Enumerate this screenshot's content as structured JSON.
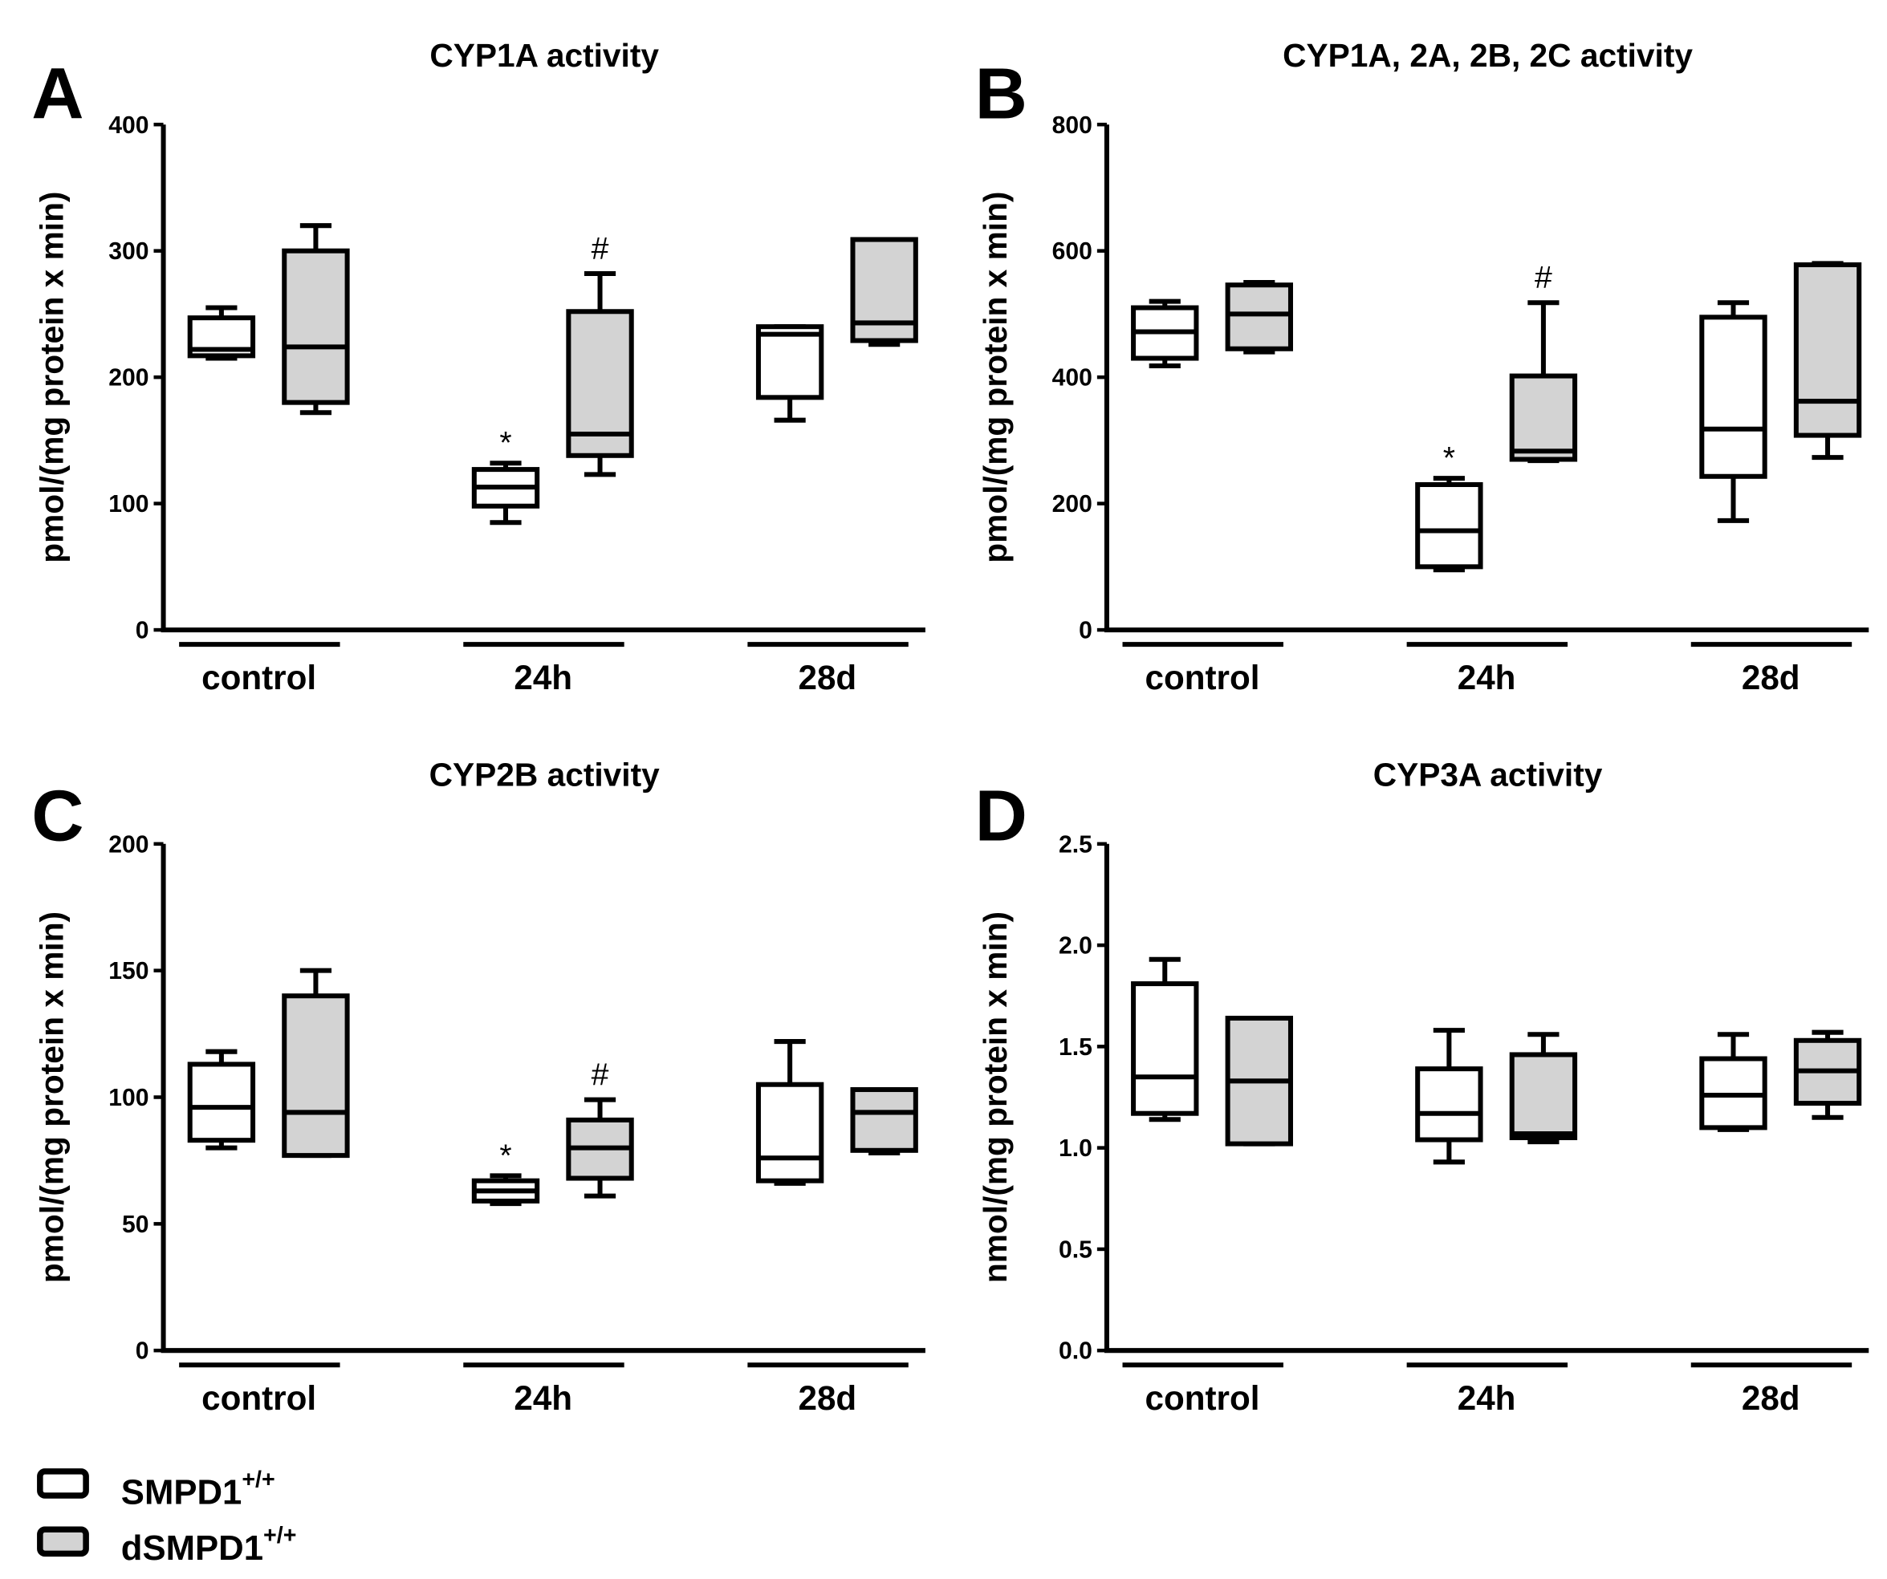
{
  "legend": {
    "items": [
      {
        "label": "SMPD1",
        "sup": "+/+",
        "color": "#ffffff"
      },
      {
        "label": "dSMPD1",
        "sup": "+/+",
        "color": "#d3d3d3"
      }
    ]
  },
  "chart_data": [
    {
      "type": "box",
      "panel": "A",
      "title": "CYP1A activity",
      "ylabel": "pmol/(mg protein x min)",
      "ylim": [
        0,
        400
      ],
      "yticks": [
        0,
        100,
        200,
        300,
        400
      ],
      "categories": [
        "control",
        "24h",
        "28d"
      ],
      "series": [
        {
          "name": "SMPD1+/+",
          "boxes": [
            [
              215,
              217,
              222,
              247,
              255
            ],
            [
              85,
              98,
              113,
              127,
              132
            ],
            [
              166,
              184,
              234,
              240,
              240
            ]
          ]
        },
        {
          "name": "dSMPD1+/+",
          "boxes": [
            [
              172,
              180,
              224,
              300,
              320
            ],
            [
              123,
              138,
              155,
              252,
              282
            ],
            [
              226,
              229,
              243,
              309,
              309
            ]
          ]
        }
      ],
      "annotations": [
        {
          "category": 1,
          "series": 0,
          "text": "*"
        },
        {
          "category": 1,
          "series": 1,
          "text": "#"
        }
      ]
    },
    {
      "type": "box",
      "panel": "B",
      "title": "CYP1A, 2A, 2B, 2C activity",
      "ylabel": "pmol/(mg protein x min)",
      "ylim": [
        0,
        800
      ],
      "yticks": [
        0,
        200,
        400,
        600,
        800
      ],
      "categories": [
        "control",
        "24h",
        "28d"
      ],
      "series": [
        {
          "name": "SMPD1+/+",
          "boxes": [
            [
              418,
              430,
              472,
              510,
              520
            ],
            [
              95,
              100,
              157,
              230,
              240
            ],
            [
              173,
              243,
              318,
              495,
              518
            ]
          ]
        },
        {
          "name": "dSMPD1+/+",
          "boxes": [
            [
              440,
              445,
              500,
              546,
              550
            ],
            [
              268,
              270,
              283,
              402,
              518
            ],
            [
              273,
              308,
              362,
              578,
              580
            ]
          ]
        }
      ],
      "annotations": [
        {
          "category": 1,
          "series": 0,
          "text": "*"
        },
        {
          "category": 1,
          "series": 1,
          "text": "#"
        }
      ]
    },
    {
      "type": "box",
      "panel": "C",
      "title": "CYP2B activity",
      "ylabel": "pmol/(mg protein x min)",
      "ylim": [
        0,
        200
      ],
      "yticks": [
        0,
        50,
        100,
        150,
        200
      ],
      "categories": [
        "control",
        "24h",
        "28d"
      ],
      "series": [
        {
          "name": "SMPD1+/+",
          "boxes": [
            [
              80,
              83,
              96,
              113,
              118
            ],
            [
              58,
              59,
              63,
              67,
              69
            ],
            [
              66,
              67,
              76,
              105,
              122
            ]
          ]
        },
        {
          "name": "dSMPD1+/+",
          "boxes": [
            [
              77,
              77,
              94,
              140,
              150
            ],
            [
              61,
              68,
              80,
              91,
              99
            ],
            [
              78,
              79,
              94,
              103,
              103
            ]
          ]
        }
      ],
      "annotations": [
        {
          "category": 1,
          "series": 0,
          "text": "*"
        },
        {
          "category": 1,
          "series": 1,
          "text": "#"
        }
      ]
    },
    {
      "type": "box",
      "panel": "D",
      "title": "CYP3A activity",
      "ylabel": "nmol/(mg protein x min)",
      "ylim": [
        0,
        2.5
      ],
      "yticks": [
        "0.0",
        "0.5",
        "1.0",
        "1.5",
        "2.0",
        "2.5"
      ],
      "categories": [
        "control",
        "24h",
        "28d"
      ],
      "series": [
        {
          "name": "SMPD1+/+",
          "boxes": [
            [
              1.14,
              1.17,
              1.35,
              1.81,
              1.93
            ],
            [
              0.93,
              1.04,
              1.17,
              1.39,
              1.58
            ],
            [
              1.09,
              1.1,
              1.26,
              1.44,
              1.56
            ]
          ]
        },
        {
          "name": "dSMPD1+/+",
          "boxes": [
            [
              1.02,
              1.02,
              1.33,
              1.64,
              1.64
            ],
            [
              1.03,
              1.05,
              1.07,
              1.46,
              1.56
            ],
            [
              1.15,
              1.22,
              1.38,
              1.53,
              1.57
            ]
          ]
        }
      ],
      "annotations": []
    }
  ]
}
